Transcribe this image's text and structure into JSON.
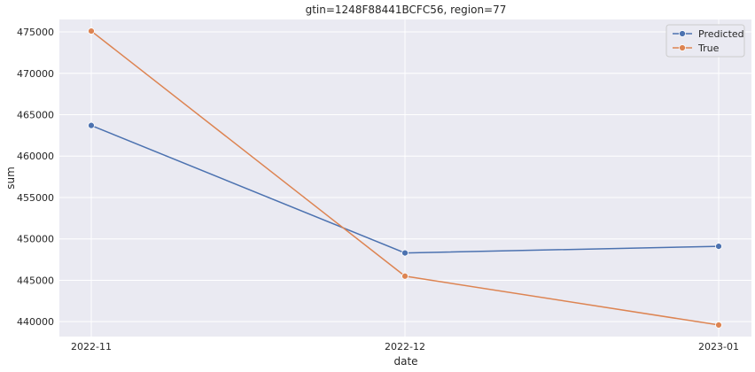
{
  "chart_data": {
    "type": "line",
    "title": "gtin=1248F88441BCFC56, region=77",
    "xlabel": "date",
    "ylabel": "sum",
    "categories": [
      "2022-11",
      "2022-12",
      "2023-01"
    ],
    "yticks": [
      440000,
      445000,
      450000,
      455000,
      460000,
      465000,
      470000,
      475000
    ],
    "ylim": [
      438200,
      476500
    ],
    "grid": true,
    "legend_position": "top-right",
    "series": [
      {
        "name": "Predicted",
        "color": "#4c72b0",
        "values": [
          463700,
          448300,
          449100
        ]
      },
      {
        "name": "True",
        "color": "#dd8452",
        "values": [
          475100,
          445500,
          439600
        ]
      }
    ]
  }
}
